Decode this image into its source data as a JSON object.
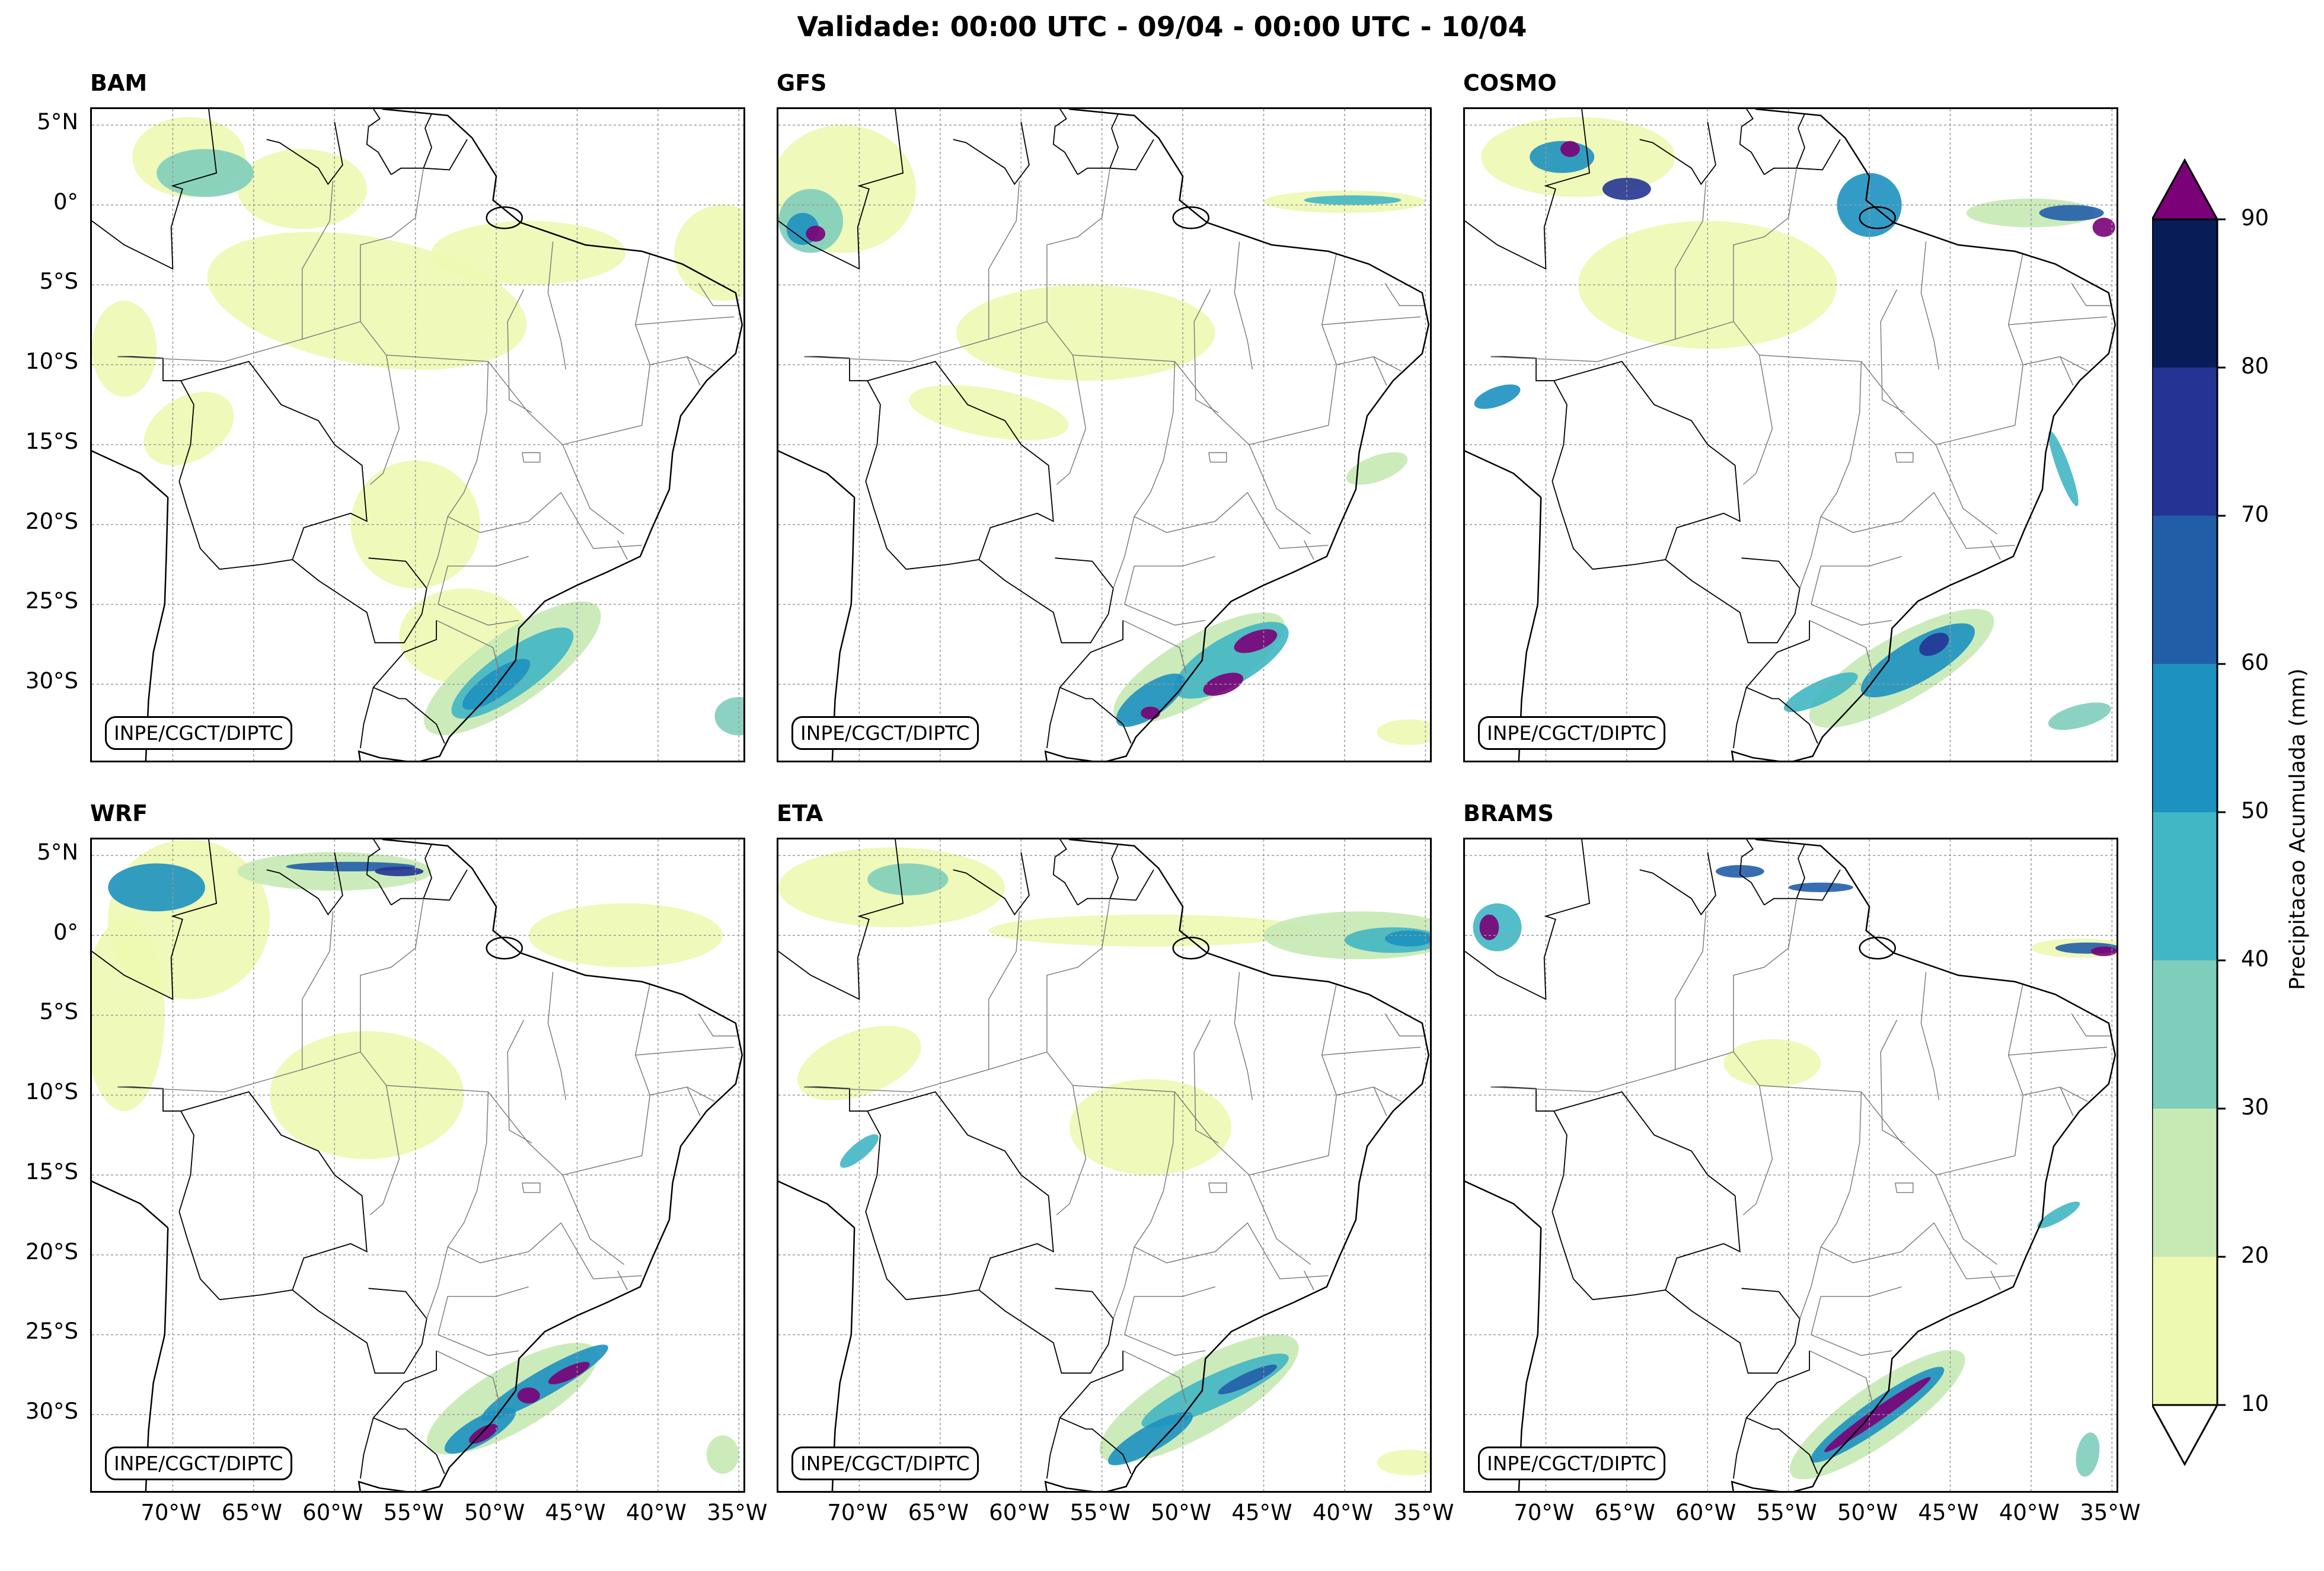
{
  "title": "Validade: 00:00 UTC - 09/04 - 00:00 UTC - 10/04",
  "panels": [
    {
      "name": "BAM"
    },
    {
      "name": "GFS"
    },
    {
      "name": "COSMO"
    },
    {
      "name": "WRF"
    },
    {
      "name": "ETA"
    },
    {
      "name": "BRAMS"
    }
  ],
  "credit": "INPE/CGCT/DIPTC",
  "lat_labels": [
    "5°N",
    "0°",
    "5°S",
    "10°S",
    "15°S",
    "20°S",
    "25°S",
    "30°S"
  ],
  "lon_labels": [
    "70°W",
    "65°W",
    "60°W",
    "55°W",
    "50°W",
    "45°W",
    "40°W",
    "35°W"
  ],
  "colorbar": {
    "label": "Precipitacao Acumulada (mm)",
    "ticks": [
      "10",
      "20",
      "30",
      "40",
      "50",
      "60",
      "70",
      "80",
      "90"
    ],
    "colors": [
      "#edf8b1",
      "#c7e9b4",
      "#7fcdbb",
      "#41b6c4",
      "#1d91c0",
      "#225ea8",
      "#253494",
      "#081d58"
    ],
    "over_color": "#7a0177",
    "under_color": "#ffffff"
  }
}
